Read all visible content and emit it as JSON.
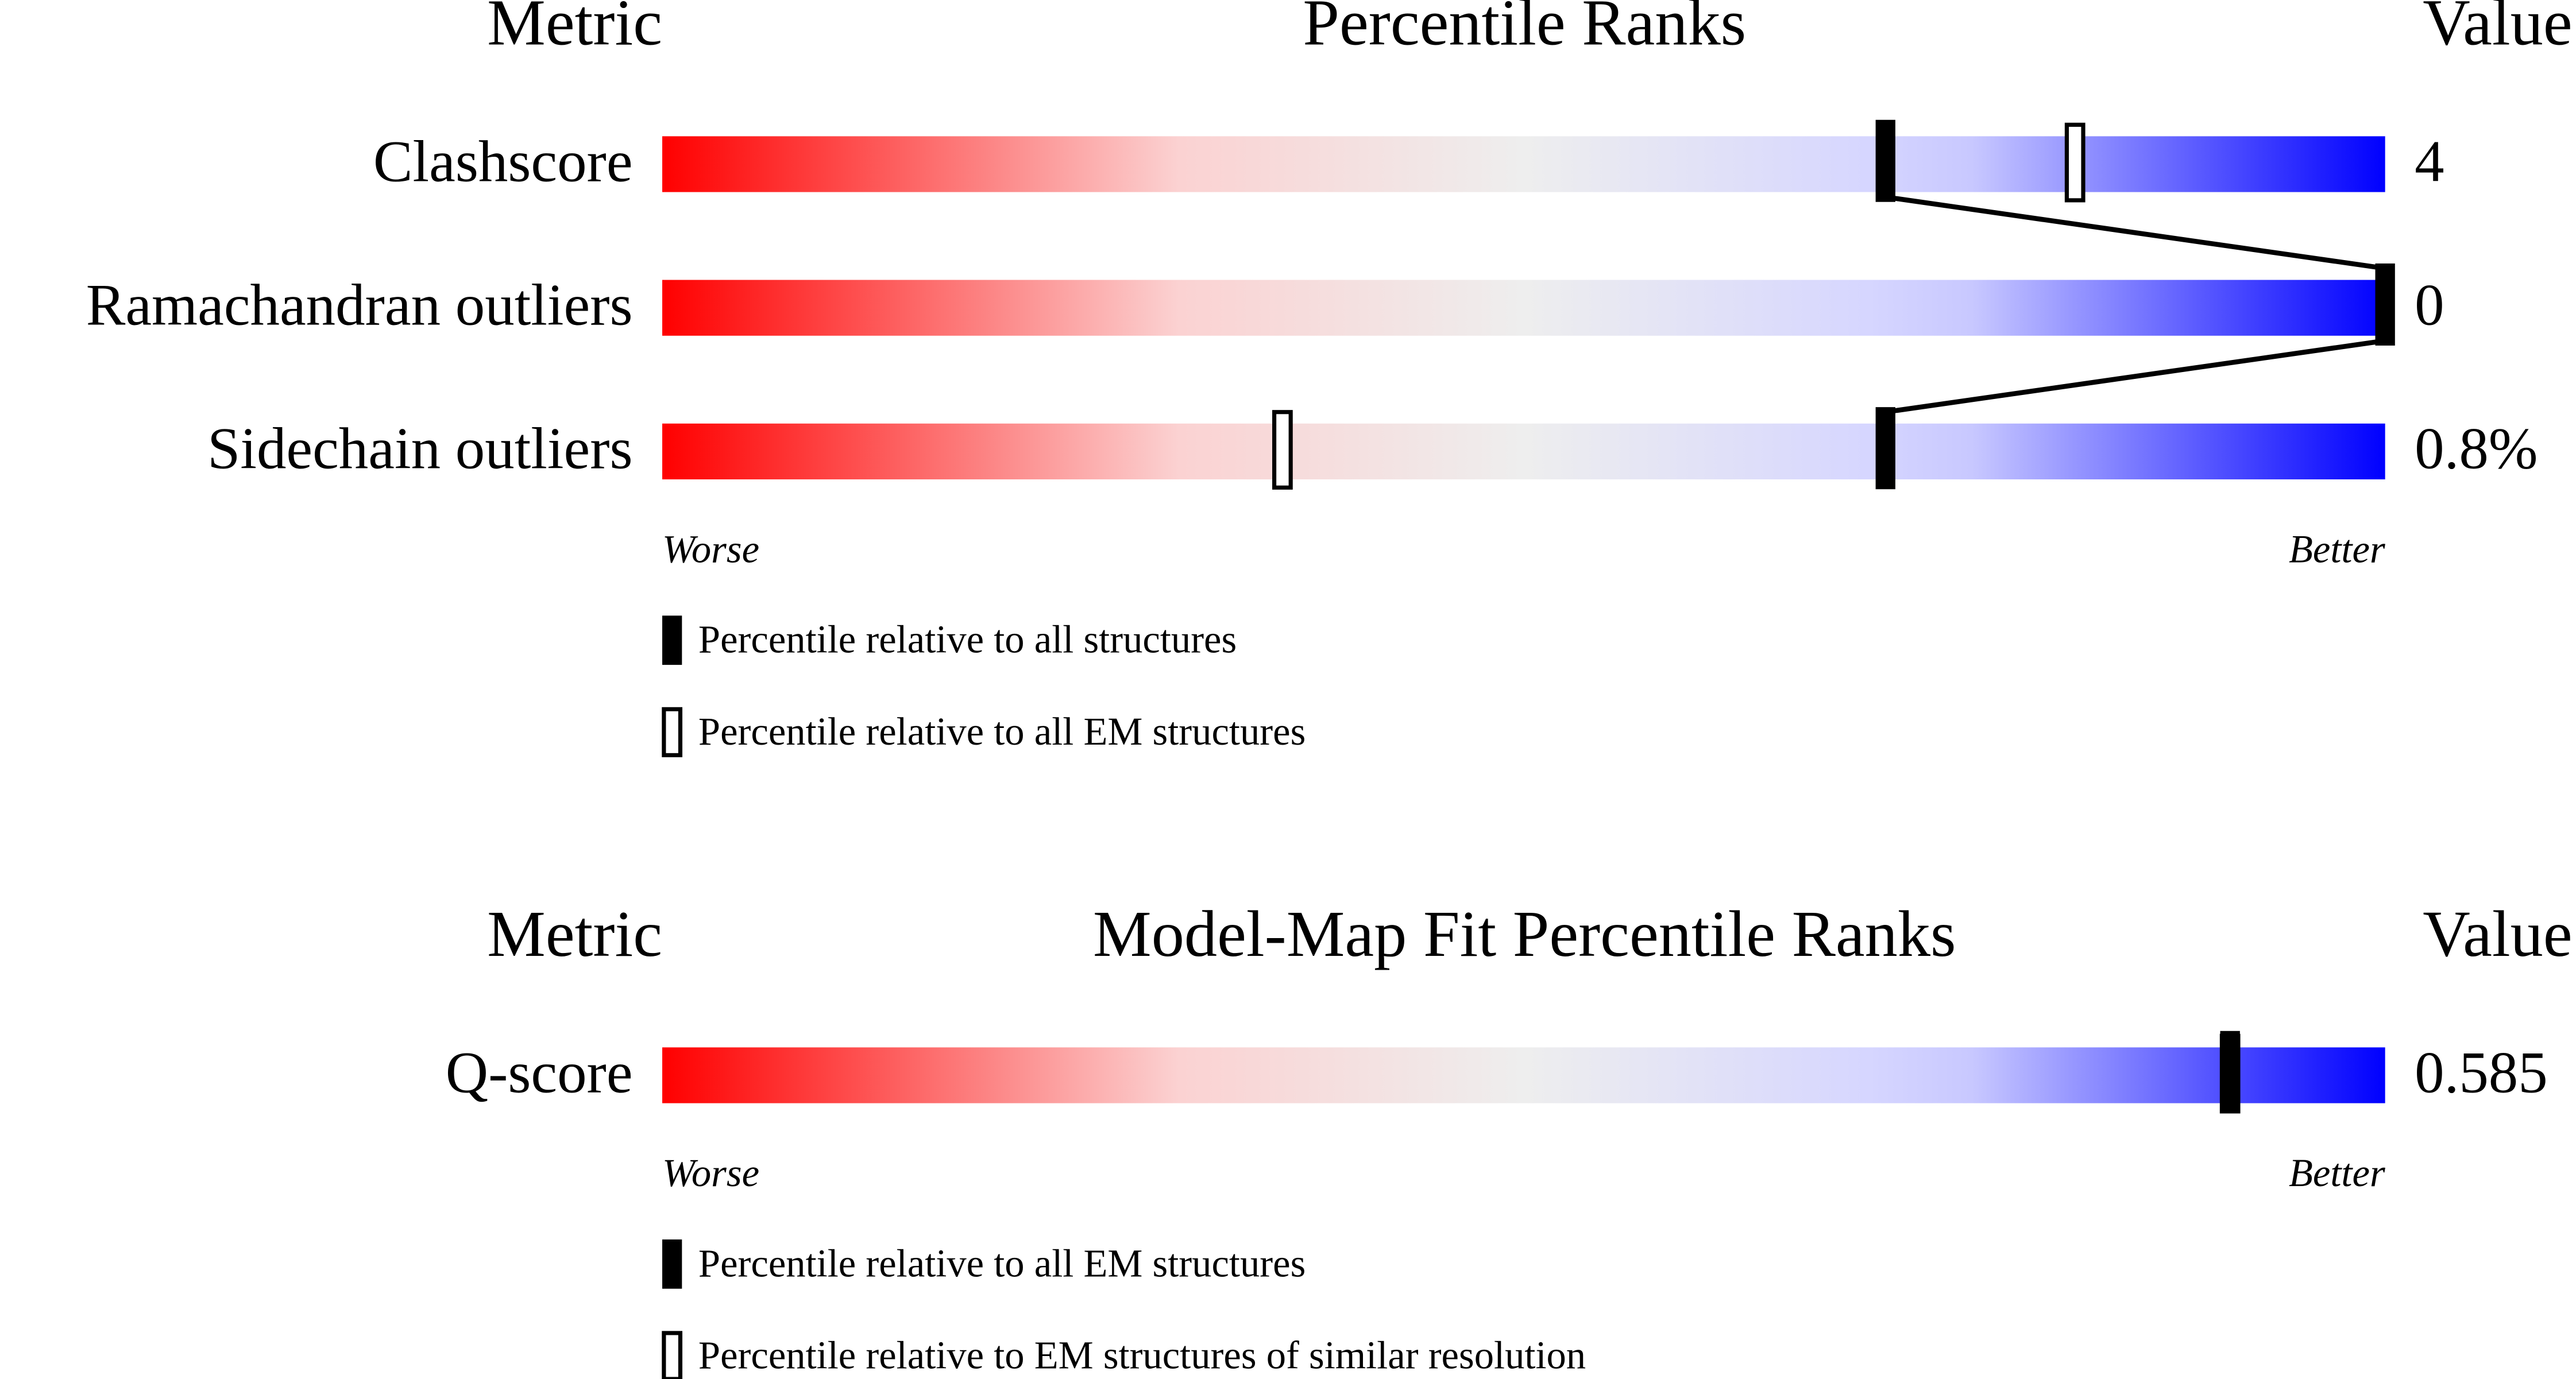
{
  "chart_data": [
    {
      "type": "percentile",
      "metric_header": "Metric",
      "title": "Percentile Ranks",
      "value_header": "Value",
      "categories": [
        "Clashscore",
        "Ramachandran outliers",
        "Sidechain outliers"
      ],
      "series": [
        {
          "name": "Percentile relative to all structures",
          "color": "#000000",
          "filled": true,
          "values": [
            71,
            100,
            71
          ]
        },
        {
          "name": "Percentile relative to all EM structures",
          "color": "#000000",
          "filled": false,
          "values": [
            82,
            null,
            36
          ]
        }
      ],
      "values": [
        4,
        0,
        0.8
      ],
      "value_labels": [
        "4",
        "0",
        "0.8%"
      ],
      "xlim": [
        0,
        100
      ],
      "worse_label": "Worse",
      "better_label": "Better"
    },
    {
      "type": "percentile",
      "metric_header": "Metric",
      "title": "Model-Map Fit Percentile Ranks",
      "value_header": "Value",
      "categories": [
        "Q-score"
      ],
      "series": [
        {
          "name": "Percentile relative to all EM structures",
          "color": "#000000",
          "filled": true,
          "values": [
            91
          ]
        },
        {
          "name": "Percentile relative to EM structures of similar resolution",
          "color": "#000000",
          "filled": false,
          "values": [
            91
          ]
        }
      ],
      "values": [
        0.585
      ],
      "xlim": [
        0,
        100
      ],
      "worse_label": "Worse",
      "better_label": "Better"
    }
  ]
}
